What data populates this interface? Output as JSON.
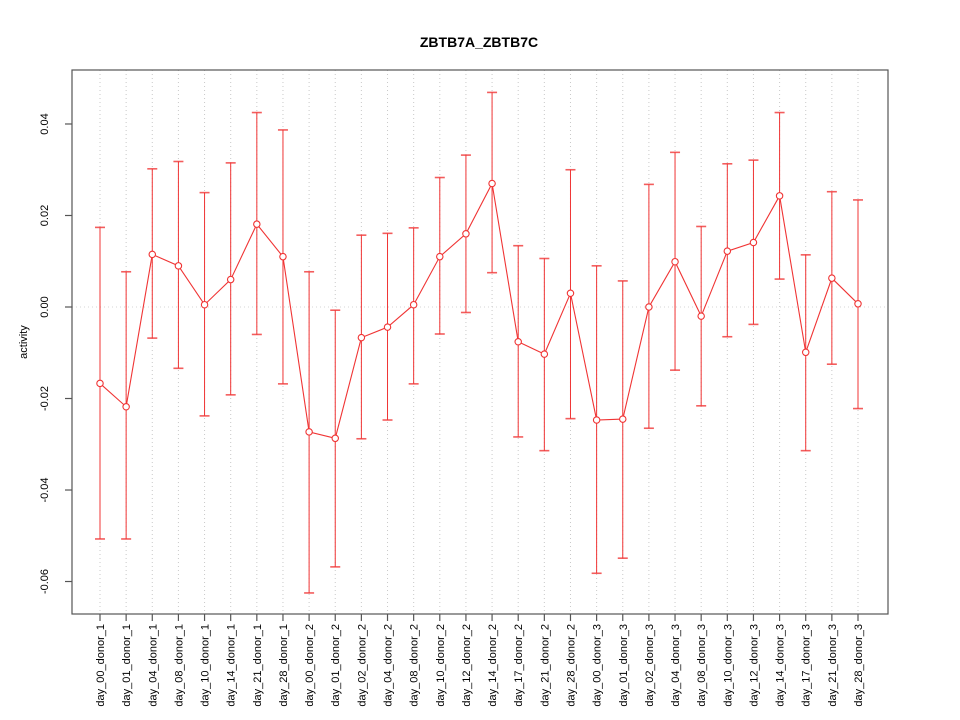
{
  "chart_data": {
    "type": "line",
    "title": "ZBTB7A_ZBTB7C",
    "xlabel": "",
    "ylabel": "activity",
    "legend": "none",
    "grid": "dotted vertical gridline at each category; dotted horizontal line at y=0",
    "marker": "open-circle",
    "error_bars": true,
    "categories": [
      "day_00_donor_1",
      "day_01_donor_1",
      "day_04_donor_1",
      "day_08_donor_1",
      "day_10_donor_1",
      "day_14_donor_1",
      "day_21_donor_1",
      "day_28_donor_1",
      "day_00_donor_2",
      "day_01_donor_2",
      "day_02_donor_2",
      "day_04_donor_2",
      "day_08_donor_2",
      "day_10_donor_2",
      "day_12_donor_2",
      "day_14_donor_2",
      "day_17_donor_2",
      "day_21_donor_2",
      "day_28_donor_2",
      "day_00_donor_3",
      "day_01_donor_3",
      "day_02_donor_3",
      "day_04_donor_3",
      "day_08_donor_3",
      "day_10_donor_3",
      "day_12_donor_3",
      "day_14_donor_3",
      "day_17_donor_3",
      "day_21_donor_3",
      "day_28_donor_3"
    ],
    "series": [
      {
        "name": "activity",
        "values": [
          -0.0167,
          -0.0218,
          0.0115,
          0.009,
          0.0005,
          0.006,
          0.0181,
          0.011,
          -0.0273,
          -0.0287,
          -0.0067,
          -0.0044,
          0.0005,
          0.011,
          0.016,
          0.027,
          -0.0076,
          -0.0103,
          0.003,
          -0.0247,
          -0.0245,
          0.0,
          0.0099,
          -0.002,
          0.0122,
          0.0141,
          0.0243,
          -0.0099,
          0.0063,
          0.0007
        ],
        "error_high": [
          0.0174,
          0.0077,
          0.0302,
          0.0318,
          0.025,
          0.0315,
          0.0425,
          0.0387,
          0.0077,
          -0.0007,
          0.0157,
          0.0161,
          0.0173,
          0.0283,
          0.0332,
          0.0469,
          0.0134,
          0.0106,
          0.03,
          0.009,
          0.0057,
          0.0268,
          0.0338,
          0.0176,
          0.0313,
          0.0321,
          0.0425,
          0.0114,
          0.0252,
          0.0234
        ],
        "error_low": [
          -0.0507,
          -0.0507,
          -0.0068,
          -0.0134,
          -0.0238,
          -0.0192,
          -0.006,
          -0.0168,
          -0.0625,
          -0.0568,
          -0.0288,
          -0.0247,
          -0.0168,
          -0.0059,
          -0.0012,
          0.0075,
          -0.0284,
          -0.0314,
          -0.0244,
          -0.0582,
          -0.0549,
          -0.0265,
          -0.0138,
          -0.0216,
          -0.0065,
          -0.0038,
          0.0061,
          -0.0314,
          -0.0125,
          -0.0222
        ]
      }
    ],
    "yticks": [
      -0.06,
      -0.04,
      -0.02,
      0,
      0.02,
      0.04
    ],
    "ytick_labels": [
      "-0.06",
      "-0.04",
      "-0.02",
      "0.00",
      "0.02",
      "0.04"
    ],
    "ylim": [
      -0.0671,
      0.0518
    ],
    "colors": {
      "series": "#f03434",
      "grid": "#c9c9c9",
      "zero_line": "#d4d4d4",
      "box": "#555555",
      "text": "#000000",
      "background": "#ffffff"
    }
  }
}
